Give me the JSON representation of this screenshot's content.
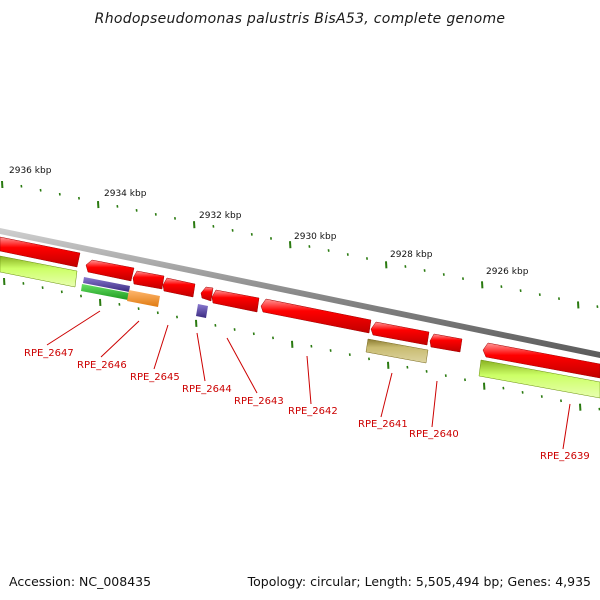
{
  "title": "Rhodopseudomonas palustris BisA53, complete genome",
  "footer": {
    "accession": "Accession: NC_008435",
    "summary": "Topology: circular; Length: 5,505,494 bp; Genes: 4,935"
  },
  "ruler_labels": [
    "2936 kbp",
    "2934 kbp",
    "2932 kbp",
    "2930 kbp",
    "2928 kbp",
    "2926 kbp"
  ],
  "gene_labels": [
    "RPE_2647",
    "RPE_2646",
    "RPE_2645",
    "RPE_2644",
    "RPE_2643",
    "RPE_2642",
    "RPE_2641",
    "RPE_2640",
    "RPE_2639"
  ],
  "colors": {
    "backbone": "#8a8a8a",
    "cds": "#ff0000",
    "gene_forward": "#ccff66",
    "purple": "#5a4aa0",
    "green": "#33cc33",
    "orange": "#ff9933",
    "khaki": "#c8bb70",
    "tick": "#2a7a10",
    "label": "#cc0000"
  }
}
